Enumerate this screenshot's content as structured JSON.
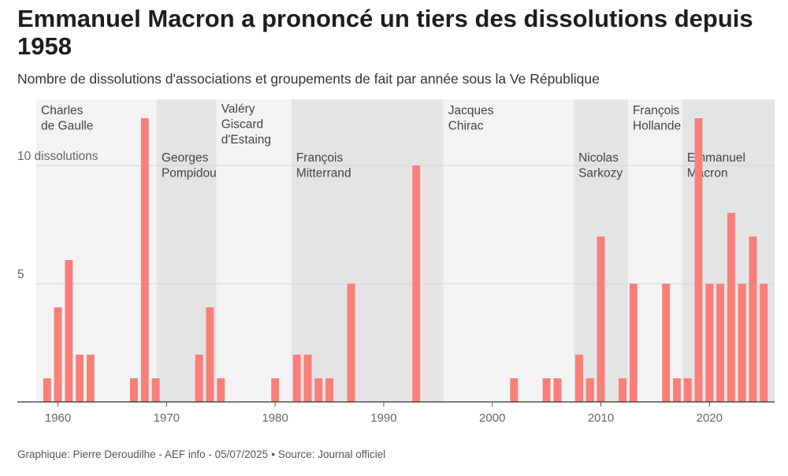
{
  "title": "Emmanuel Macron a prononcé un tiers des dissolutions depuis 1958",
  "subtitle": "Nombre de dissolutions d'associations et groupements de fait par année sous la Ve République",
  "footer": {
    "credit": "Graphique: Pierre Deroudilhe - AEF info - 05/07/2025",
    "separator": "•",
    "source": "Source: Journal officiel"
  },
  "colors": {
    "bar": "#f97f78",
    "band_dark": "#e4e4e4",
    "band_light": "#f3f3f3",
    "axis_text": "#666666",
    "band_label": "#444444"
  },
  "chart_data": {
    "type": "bar",
    "xlim": [
      1958,
      2026
    ],
    "ylim": [
      0,
      12.8
    ],
    "xticks": [
      1960,
      1970,
      1980,
      1990,
      2000,
      2010,
      2020
    ],
    "yticks": [
      {
        "value": 5,
        "label": "5"
      },
      {
        "value": 10,
        "label": "10 dissolutions"
      }
    ],
    "grid": true,
    "x": [
      1959,
      1960,
      1961,
      1962,
      1963,
      1967,
      1968,
      1969,
      1973,
      1974,
      1975,
      1980,
      1982,
      1983,
      1984,
      1985,
      1987,
      1993,
      2002,
      2005,
      2006,
      2008,
      2009,
      2010,
      2012,
      2013,
      2016,
      2017,
      2018,
      2019,
      2020,
      2021,
      2022,
      2023,
      2024,
      2025
    ],
    "values": [
      1,
      4,
      6,
      2,
      2,
      1,
      12,
      1,
      2,
      4,
      1,
      1,
      2,
      2,
      1,
      1,
      5,
      10,
      1,
      1,
      1,
      2,
      1,
      7,
      1,
      5,
      5,
      1,
      1,
      12,
      5,
      5,
      8,
      5,
      7,
      5
    ],
    "presidencies": [
      {
        "name": "Charles de Gaulle",
        "lines": [
          "Charles",
          "de Gaulle"
        ],
        "start": 1958,
        "end": 1969.1,
        "shade": "light"
      },
      {
        "name": "Georges Pompidou",
        "lines": [
          "Georges",
          "Pompidou"
        ],
        "start": 1969.1,
        "end": 1974.6,
        "shade": "dark"
      },
      {
        "name": "Valéry Giscard d'Estaing",
        "lines": [
          "Valéry",
          "Giscard",
          "d'Estaing"
        ],
        "start": 1974.6,
        "end": 1981.5,
        "shade": "light"
      },
      {
        "name": "François Mitterrand",
        "lines": [
          "François",
          "Mitterrand"
        ],
        "start": 1981.5,
        "end": 1995.5,
        "shade": "dark"
      },
      {
        "name": "Jacques Chirac",
        "lines": [
          "Jacques",
          "Chirac"
        ],
        "start": 1995.5,
        "end": 2007.5,
        "shade": "light"
      },
      {
        "name": "Nicolas Sarkozy",
        "lines": [
          "Nicolas",
          "Sarkozy"
        ],
        "start": 2007.5,
        "end": 2012.5,
        "shade": "dark"
      },
      {
        "name": "François Hollande",
        "lines": [
          "François",
          "Hollande"
        ],
        "start": 2012.5,
        "end": 2017.5,
        "shade": "light"
      },
      {
        "name": "Emmanuel Macron",
        "lines": [
          "Emmanuel",
          "Macron"
        ],
        "start": 2017.5,
        "end": 2026,
        "shade": "dark"
      }
    ]
  }
}
